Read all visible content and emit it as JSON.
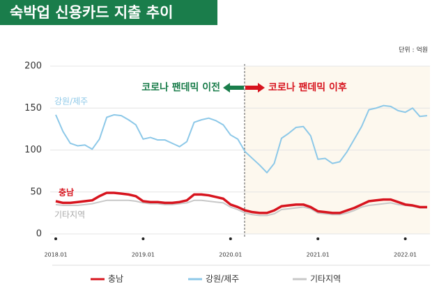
{
  "chart_data": {
    "type": "line",
    "title": "숙박업 신용카드 지출 추이",
    "unit": "단위 : 억원",
    "categories": [
      "2018.01",
      null,
      null,
      null,
      null,
      null,
      null,
      null,
      null,
      null,
      null,
      null,
      "2019.01",
      null,
      null,
      null,
      null,
      null,
      null,
      null,
      null,
      null,
      null,
      null,
      "2020.01",
      null,
      null,
      null,
      null,
      null,
      null,
      null,
      null,
      null,
      null,
      null,
      "2021.01",
      null,
      null,
      null,
      null,
      null,
      null,
      null,
      null,
      null,
      null,
      null,
      "2022.01",
      null,
      null,
      null
    ],
    "series": [
      {
        "name": "충남",
        "color": "#d7141e",
        "values": [
          39,
          37,
          37,
          38,
          39,
          40,
          45,
          49,
          49,
          48,
          47,
          45,
          39,
          38,
          38,
          37,
          37,
          38,
          40,
          47,
          47,
          46,
          44,
          42,
          35,
          32,
          28,
          26,
          25,
          25,
          28,
          33,
          34,
          35,
          35,
          32,
          27,
          26,
          25,
          25,
          28,
          31,
          35,
          39,
          40,
          41,
          41,
          38,
          35,
          34,
          32,
          32
        ]
      },
      {
        "name": "강원/제주",
        "color": "#8cc8e8",
        "values": [
          142,
          122,
          108,
          105,
          106,
          101,
          113,
          139,
          142,
          141,
          136,
          130,
          113,
          115,
          112,
          112,
          108,
          104,
          110,
          133,
          136,
          138,
          135,
          130,
          118,
          113,
          98,
          90,
          82,
          73,
          84,
          114,
          120,
          127,
          128,
          117,
          89,
          90,
          84,
          86,
          98,
          113,
          128,
          148,
          150,
          153,
          152,
          147,
          145,
          150,
          140,
          141
        ]
      },
      {
        "name": "기타지역",
        "color": "#c8c8c8",
        "values": [
          35,
          34,
          34,
          34,
          35,
          36,
          38,
          40,
          40,
          40,
          40,
          39,
          37,
          36,
          36,
          35,
          35,
          36,
          37,
          40,
          40,
          39,
          38,
          37,
          32,
          29,
          25,
          23,
          22,
          22,
          24,
          29,
          30,
          31,
          32,
          30,
          25,
          24,
          23,
          23,
          25,
          28,
          32,
          34,
          35,
          36,
          37,
          35,
          34,
          33,
          31,
          31
        ]
      }
    ],
    "ylim": [
      0,
      200
    ],
    "yticks": [
      0,
      50,
      100,
      150,
      200
    ],
    "annotations": [
      "코로나 팬데믹 이전",
      "코로나 팬데믹 이후"
    ]
  }
}
